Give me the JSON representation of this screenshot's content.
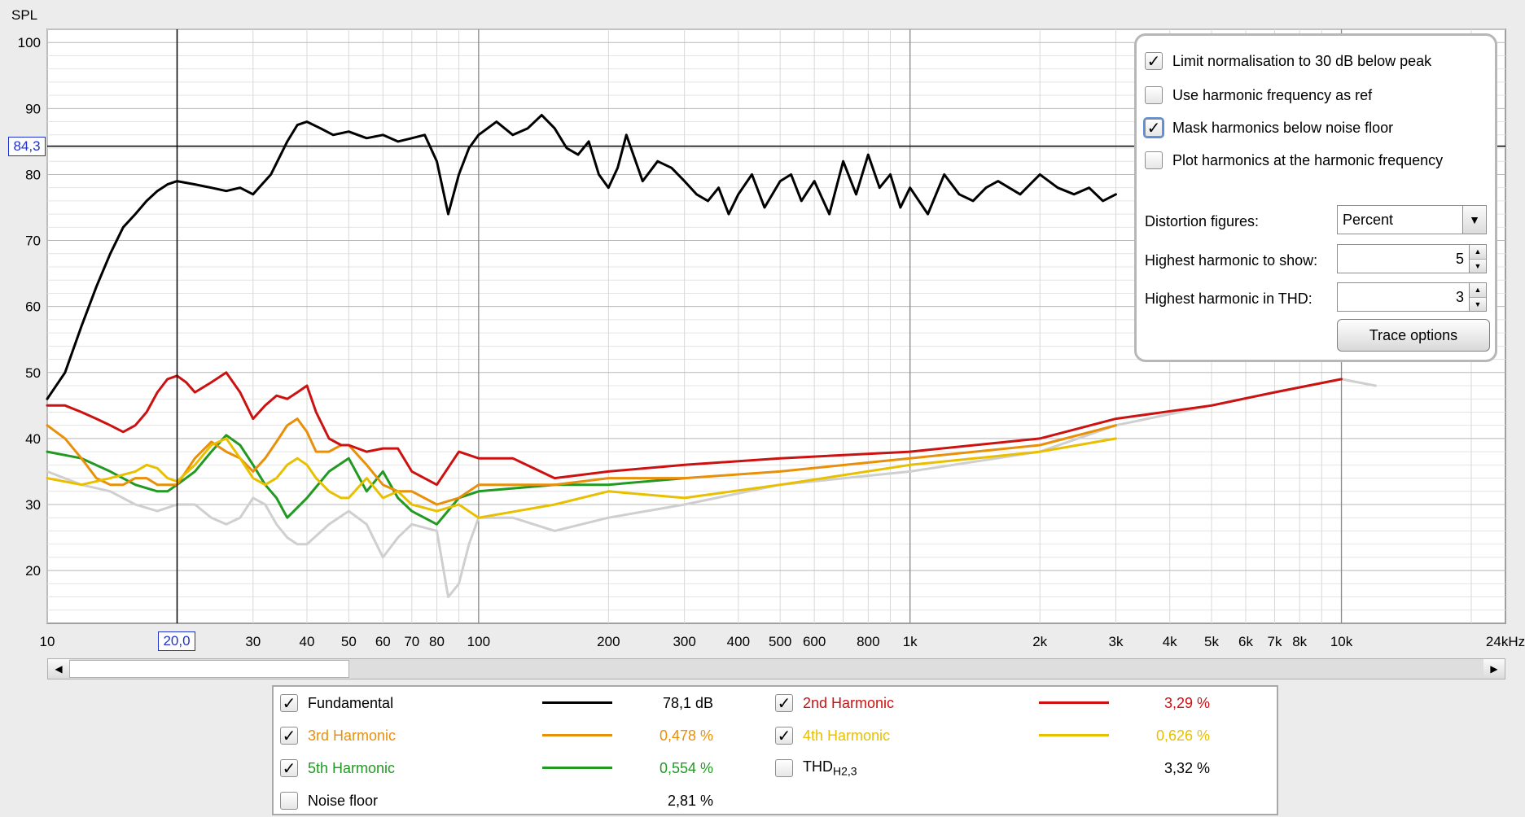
{
  "chart_data": {
    "type": "line",
    "ylabel": "SPL",
    "xscale": "log",
    "xlim": [
      10,
      24000
    ],
    "ylim": [
      12,
      102
    ],
    "y_ticks": [
      100,
      90,
      80,
      70,
      60,
      50,
      40,
      30,
      20
    ],
    "x_ticks": [
      {
        "v": 10,
        "label": "10"
      },
      {
        "v": 20,
        "label": ""
      },
      {
        "v": 30,
        "label": "30"
      },
      {
        "v": 40,
        "label": "40"
      },
      {
        "v": 50,
        "label": "50"
      },
      {
        "v": 60,
        "label": "60"
      },
      {
        "v": 70,
        "label": "70"
      },
      {
        "v": 80,
        "label": "80"
      },
      {
        "v": 100,
        "label": "100"
      },
      {
        "v": 200,
        "label": "200"
      },
      {
        "v": 300,
        "label": "300"
      },
      {
        "v": 400,
        "label": "400"
      },
      {
        "v": 500,
        "label": "500"
      },
      {
        "v": 600,
        "label": "600"
      },
      {
        "v": 800,
        "label": "800"
      },
      {
        "v": 1000,
        "label": "1k"
      },
      {
        "v": 2000,
        "label": "2k"
      },
      {
        "v": 3000,
        "label": "3k"
      },
      {
        "v": 4000,
        "label": "4k"
      },
      {
        "v": 5000,
        "label": "5k"
      },
      {
        "v": 6000,
        "label": "6k"
      },
      {
        "v": 7000,
        "label": "7k"
      },
      {
        "v": 8000,
        "label": "8k"
      },
      {
        "v": 10000,
        "label": "10k"
      },
      {
        "v": 24000,
        "label": "24kHz"
      }
    ],
    "cursor": {
      "x": 20.0,
      "x_label": "20,0",
      "y": 84.3,
      "y_label": "84,3"
    },
    "series": [
      {
        "name": "Fundamental",
        "color": "#000000",
        "width": 3,
        "x": [
          10,
          11,
          12,
          13,
          14,
          15,
          16,
          17,
          18,
          19,
          20,
          22,
          24,
          26,
          28,
          30,
          33,
          36,
          38,
          40,
          43,
          46,
          50,
          55,
          60,
          65,
          70,
          75,
          80,
          85,
          90,
          95,
          100,
          110,
          120,
          130,
          140,
          150,
          160,
          170,
          180,
          190,
          200,
          210,
          220,
          240,
          260,
          280,
          300,
          320,
          340,
          360,
          380,
          400,
          430,
          460,
          500,
          530,
          560,
          600,
          650,
          700,
          750,
          800,
          850,
          900,
          950,
          1000,
          1100,
          1200,
          1300,
          1400,
          1500,
          1600,
          1800,
          2000,
          2200,
          2400,
          2600,
          2800,
          3000
        ],
        "y": [
          46,
          50,
          57,
          63,
          68,
          72,
          74,
          76,
          77.5,
          78.5,
          79,
          78.5,
          78,
          77.5,
          78,
          77,
          80,
          85,
          87.5,
          88,
          87,
          86,
          86.5,
          85.5,
          86,
          85,
          85.5,
          86,
          82,
          74,
          80,
          84,
          86,
          88,
          86,
          87,
          89,
          87,
          84,
          83,
          85,
          80,
          78,
          81,
          86,
          79,
          82,
          81,
          79,
          77,
          76,
          78,
          74,
          77,
          80,
          75,
          79,
          80,
          76,
          79,
          74,
          82,
          77,
          83,
          78,
          80,
          75,
          78,
          74,
          80,
          77,
          76,
          78,
          79,
          77,
          80,
          78,
          77,
          78,
          76,
          77
        ]
      },
      {
        "name": "2nd Harmonic",
        "color": "#cc1111",
        "width": 3,
        "x": [
          10,
          11,
          12,
          13,
          14,
          15,
          16,
          17,
          18,
          19,
          20,
          21,
          22,
          24,
          26,
          28,
          30,
          32,
          34,
          36,
          38,
          40,
          42,
          45,
          48,
          50,
          55,
          60,
          65,
          70,
          80,
          90,
          100,
          120,
          150,
          200,
          300,
          500,
          1000,
          2000,
          3000,
          5000,
          7000,
          10000
        ],
        "y": [
          45,
          45,
          44,
          43,
          42,
          41,
          42,
          44,
          47,
          49,
          49.5,
          48.5,
          47,
          48.5,
          50,
          47,
          43,
          45,
          46.5,
          46,
          47,
          48,
          44,
          40,
          39,
          39,
          38,
          38.5,
          38.5,
          35,
          33,
          38,
          37,
          37,
          34,
          35,
          36,
          37,
          38,
          40,
          43,
          45,
          47,
          49
        ]
      },
      {
        "name": "3rd Harmonic",
        "color": "#e8900a",
        "width": 3,
        "x": [
          10,
          11,
          12,
          13,
          14,
          15,
          16,
          17,
          18,
          19,
          20,
          22,
          24,
          26,
          28,
          30,
          32,
          34,
          36,
          38,
          40,
          42,
          45,
          48,
          50,
          55,
          60,
          65,
          70,
          80,
          90,
          100,
          150,
          200,
          300,
          500,
          1000,
          2000,
          3000
        ],
        "y": [
          42,
          40,
          37,
          34,
          33,
          33,
          34,
          34,
          33,
          33,
          33,
          37,
          39.5,
          38,
          37,
          35,
          37,
          39.5,
          42,
          43,
          41,
          38,
          38,
          39,
          39,
          36,
          33,
          32,
          32,
          30,
          31,
          33,
          33,
          34,
          34,
          35,
          37,
          39,
          42
        ]
      },
      {
        "name": "4th Harmonic",
        "color": "#e8c000",
        "width": 3,
        "x": [
          10,
          12,
          14,
          16,
          17,
          18,
          19,
          20,
          22,
          24,
          26,
          28,
          30,
          32,
          34,
          36,
          38,
          40,
          42,
          45,
          48,
          50,
          55,
          60,
          65,
          70,
          80,
          90,
          100,
          150,
          200,
          300,
          500,
          1000,
          2000,
          3000
        ],
        "y": [
          34,
          33,
          34,
          35,
          36,
          35.5,
          34,
          33.5,
          36,
          39,
          40,
          37,
          34,
          33,
          34,
          36,
          37,
          36,
          34,
          32,
          31,
          31,
          34,
          31,
          32,
          30,
          29,
          30,
          28,
          30,
          32,
          31,
          33,
          36,
          38,
          40
        ]
      },
      {
        "name": "5th Harmonic",
        "color": "#229922",
        "width": 3,
        "x": [
          10,
          12,
          14,
          16,
          18,
          19,
          20,
          22,
          24,
          26,
          28,
          30,
          32,
          34,
          36,
          40,
          45,
          50,
          55,
          60,
          65,
          70,
          80,
          90,
          100,
          150,
          200,
          300
        ],
        "y": [
          38,
          37,
          35,
          33,
          32,
          32,
          33,
          35,
          38,
          40.5,
          39,
          36,
          33,
          31,
          28,
          31,
          35,
          37,
          32,
          35,
          31,
          29,
          27,
          31,
          32,
          33,
          33,
          34
        ]
      },
      {
        "name": "THD H2,3",
        "color": "#cfcfcf",
        "width": 3,
        "x": [
          10,
          12,
          14,
          16,
          18,
          20,
          22,
          24,
          26,
          28,
          30,
          32,
          34,
          36,
          38,
          40,
          45,
          50,
          55,
          60,
          65,
          70,
          80,
          85,
          90,
          95,
          100,
          120,
          150,
          200,
          300,
          500,
          1000,
          2000,
          3000,
          5000,
          7000,
          10000,
          12000
        ],
        "y": [
          35,
          33,
          32,
          30,
          29,
          30,
          30,
          28,
          27,
          28,
          31,
          30,
          27,
          25,
          24,
          24,
          27,
          29,
          27,
          22,
          25,
          27,
          26,
          16,
          18,
          24,
          28,
          28,
          26,
          28,
          30,
          33,
          35,
          38,
          42,
          45,
          47,
          49,
          48
        ]
      }
    ]
  },
  "options": {
    "limit_norm": {
      "label": "Limit normalisation to 30 dB below peak",
      "checked": true
    },
    "use_harm_freq": {
      "label": "Use harmonic frequency as ref",
      "checked": false
    },
    "mask_harm": {
      "label": "Mask harmonics below noise floor",
      "checked": true
    },
    "plot_harm": {
      "label": "Plot harmonics at the harmonic frequency",
      "checked": false
    },
    "dist_fig_label": "Distortion figures:",
    "dist_fig_value": "Percent",
    "highest_show_label": "Highest harmonic to show:",
    "highest_show_value": "5",
    "highest_thd_label": "Highest harmonic in THD:",
    "highest_thd_value": "3",
    "trace_button": "Trace options"
  },
  "legend": {
    "fundamental": {
      "label": "Fundamental",
      "value": "78,1 dB",
      "color": "#000000",
      "checked": true
    },
    "h2": {
      "label": "2nd Harmonic",
      "value": "3,29 %",
      "color": "#cc1111",
      "checked": true
    },
    "h3": {
      "label": "3rd Harmonic",
      "value": "0,478 %",
      "color": "#e8900a",
      "checked": true
    },
    "h4": {
      "label": "4th Harmonic",
      "value": "0,626 %",
      "color": "#e8c000",
      "checked": true
    },
    "h5": {
      "label": "5th Harmonic",
      "value": "0,554 %",
      "color": "#229922",
      "checked": true
    },
    "thd": {
      "label_main": "THD",
      "label_sub": "H2,3",
      "value": "3,32 %",
      "checked": false
    },
    "noise": {
      "label": "Noise floor",
      "value": "2,81 %",
      "checked": false
    }
  }
}
